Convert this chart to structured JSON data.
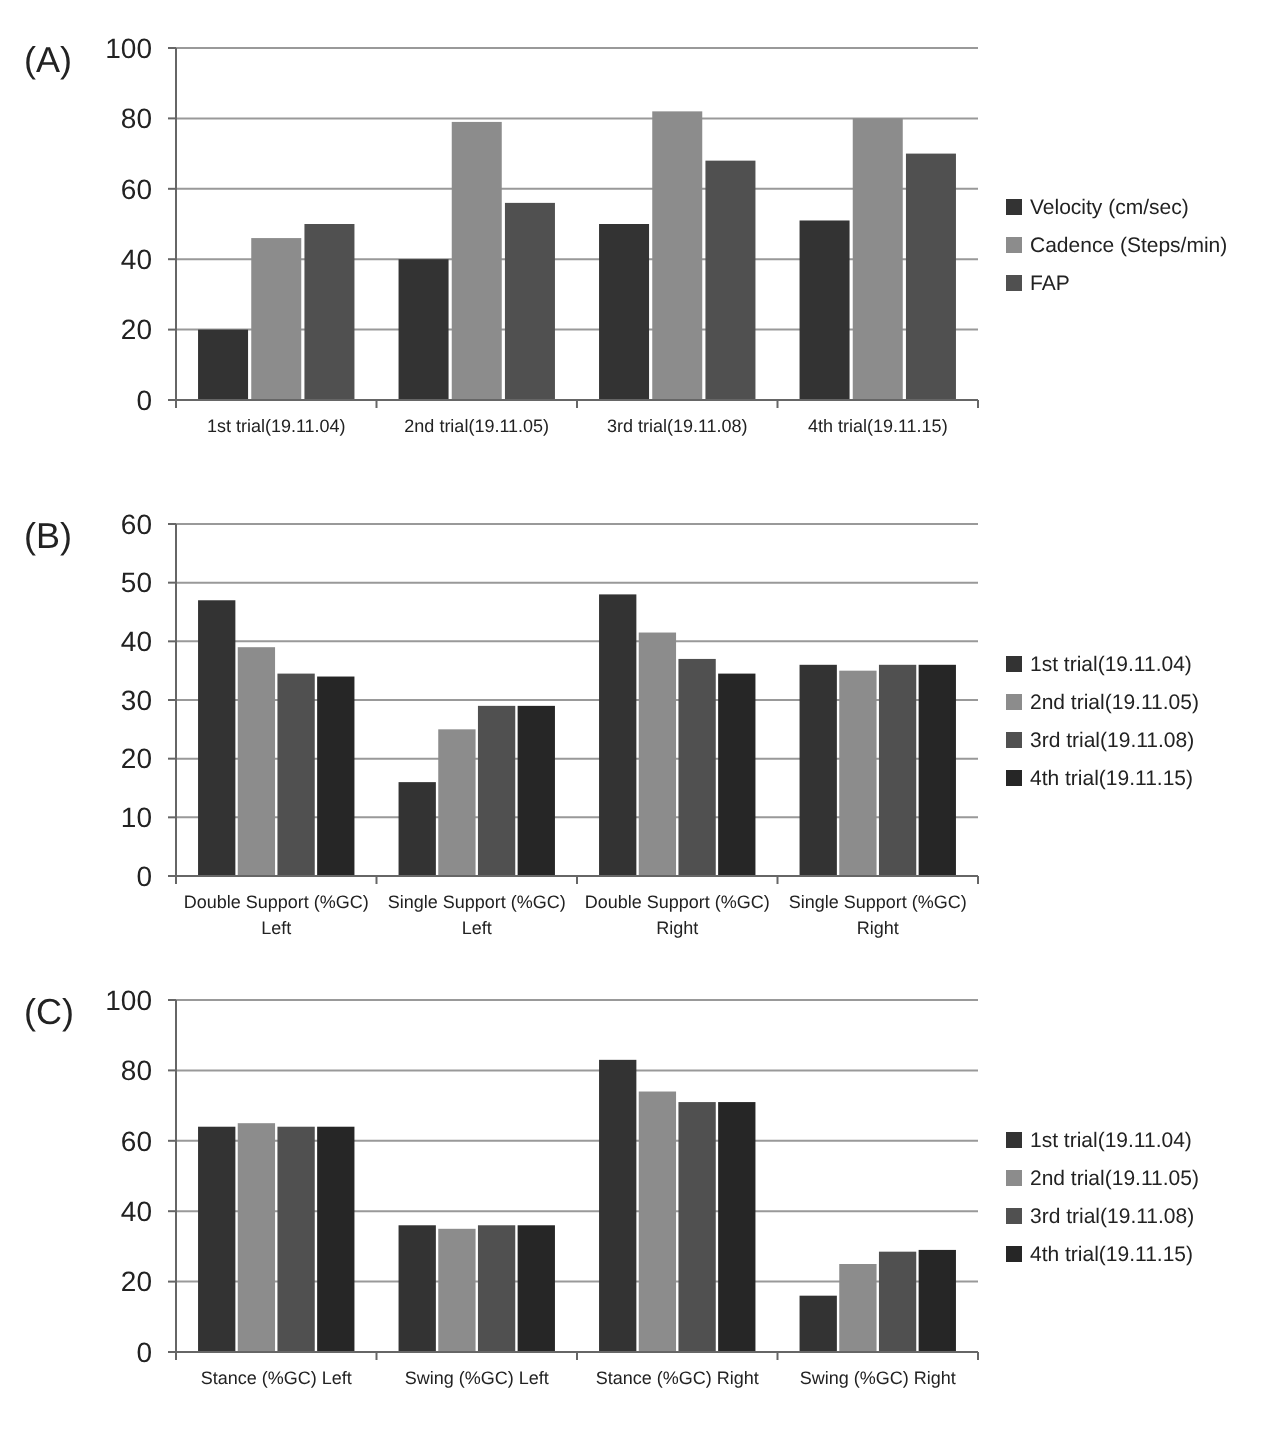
{
  "chart_data": [
    {
      "type": "bar",
      "title": "(A)",
      "categories": [
        "1st trial(19.11.04)",
        "2nd trial(19.11.05)",
        "3rd trial(19.11.08)",
        "4th trial(19.11.15)"
      ],
      "series": [
        {
          "name": "Velocity (cm/sec)",
          "color": "#333333",
          "values": [
            20,
            40,
            50,
            51
          ]
        },
        {
          "name": "Cadence (Steps/min)",
          "color": "#8c8c8c",
          "values": [
            46,
            79,
            82,
            80
          ]
        },
        {
          "name": "FAP",
          "color": "#505050",
          "values": [
            50,
            56,
            68,
            70
          ]
        }
      ],
      "ylim": [
        0,
        100
      ],
      "yticks": [
        0,
        20,
        40,
        60,
        80,
        100
      ],
      "grid": "y",
      "legend": "right"
    },
    {
      "type": "bar",
      "title": "(B)",
      "categories": [
        "Double Support (%GC) Left",
        "Single Support (%GC) Left",
        "Double Support (%GC) Right",
        "Single Support (%GC) Right"
      ],
      "series": [
        {
          "name": "1st trial(19.11.04)",
          "color": "#333333",
          "values": [
            47,
            16,
            48,
            36
          ]
        },
        {
          "name": "2nd trial(19.11.05)",
          "color": "#8c8c8c",
          "values": [
            39,
            25,
            41.5,
            35
          ]
        },
        {
          "name": "3rd trial(19.11.08)",
          "color": "#505050",
          "values": [
            34.5,
            29,
            37,
            36
          ]
        },
        {
          "name": "4th trial(19.11.15)",
          "color": "#262626",
          "values": [
            34,
            29,
            34.5,
            36
          ]
        }
      ],
      "ylim": [
        0,
        60
      ],
      "yticks": [
        0,
        10,
        20,
        30,
        40,
        50,
        60
      ],
      "grid": "y",
      "legend": "right"
    },
    {
      "type": "bar",
      "title": "(C)",
      "categories": [
        "Stance (%GC) Left",
        "Swing (%GC) Left",
        "Stance (%GC) Right",
        "Swing (%GC) Right"
      ],
      "series": [
        {
          "name": "1st trial(19.11.04)",
          "color": "#333333",
          "values": [
            64,
            36,
            83,
            16
          ]
        },
        {
          "name": "2nd trial(19.11.05)",
          "color": "#8c8c8c",
          "values": [
            65,
            35,
            74,
            25
          ]
        },
        {
          "name": "3rd trial(19.11.08)",
          "color": "#505050",
          "values": [
            64,
            36,
            71,
            28.5
          ]
        },
        {
          "name": "4th trial(19.11.15)",
          "color": "#262626",
          "values": [
            64,
            36,
            71,
            29
          ]
        }
      ],
      "ylim": [
        0,
        100
      ],
      "yticks": [
        0,
        20,
        40,
        60,
        80,
        100
      ],
      "grid": "y",
      "legend": "right"
    }
  ]
}
